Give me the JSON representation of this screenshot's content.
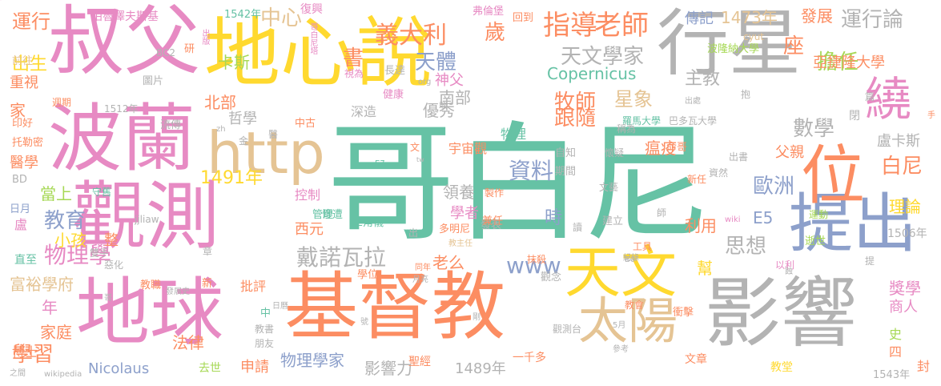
{
  "palette": {
    "teal": "#66c2a5",
    "orange": "#fc8d62",
    "blue": "#8da0cb",
    "pink": "#e78ac3",
    "green": "#a6d854",
    "yellow": "#ffd92f",
    "tan": "#e5c494",
    "gray": "#b3b3b3"
  },
  "words": [
    {
      "text": "哥白尼",
      "color": "teal"
    },
    {
      "text": "基督教",
      "color": "orange"
    },
    {
      "text": "叔父",
      "color": "pink"
    },
    {
      "text": "地心說",
      "color": "yellow"
    },
    {
      "text": "行星",
      "color": "gray"
    },
    {
      "text": "波蘭",
      "color": "pink"
    },
    {
      "text": "觀測",
      "color": "pink"
    },
    {
      "text": "地球",
      "color": "pink"
    },
    {
      "text": "影響",
      "color": "gray"
    },
    {
      "text": "天文",
      "color": "yellow"
    },
    {
      "text": "提出",
      "color": "blue"
    },
    {
      "text": "位",
      "color": "orange"
    },
    {
      "text": "繞",
      "color": "pink"
    },
    {
      "text": "http",
      "color": "tan"
    },
    {
      "text": "太陽",
      "color": "tan"
    },
    {
      "text": "指導",
      "color": "orange"
    },
    {
      "text": "老師",
      "color": "orange"
    },
    {
      "text": "義大利",
      "color": "orange"
    },
    {
      "text": "運行論",
      "color": "gray"
    },
    {
      "text": "天文學家",
      "color": "gray"
    },
    {
      "text": "天體",
      "color": "blue"
    },
    {
      "text": "擔任",
      "color": "green"
    },
    {
      "text": "數學",
      "color": "gray"
    },
    {
      "text": "歐洲",
      "color": "blue"
    },
    {
      "text": "白尼",
      "color": "orange"
    },
    {
      "text": "戴諾瓦拉",
      "color": "gray"
    },
    {
      "text": "思想",
      "color": "gray"
    },
    {
      "text": "資料",
      "color": "blue"
    },
    {
      "text": "時",
      "color": "blue"
    },
    {
      "text": "www",
      "color": "blue"
    },
    {
      "text": "物理學",
      "color": "pink"
    },
    {
      "text": "教育",
      "color": "blue"
    },
    {
      "text": "學習",
      "color": "orange"
    },
    {
      "text": "Nicolaus",
      "color": "blue"
    },
    {
      "text": "Copernicus",
      "color": "teal"
    },
    {
      "text": "波蘭",
      "color": "pink"
    },
    {
      "text": "運行",
      "color": "orange"
    },
    {
      "text": "柏魯澤夫斯基",
      "color": "pink"
    },
    {
      "text": "1542年",
      "color": "teal"
    },
    {
      "text": "中心",
      "color": "tan"
    },
    {
      "text": "復興",
      "color": "pink"
    },
    {
      "text": "書",
      "color": "orange"
    },
    {
      "text": "歲",
      "color": "orange"
    },
    {
      "text": "弗倫堡",
      "color": "pink"
    },
    {
      "text": "回到",
      "color": "orange"
    },
    {
      "text": "傳記",
      "color": "blue"
    },
    {
      "text": "1473年",
      "color": "tan"
    },
    {
      "text": "發展",
      "color": "orange"
    },
    {
      "text": "出生",
      "color": "yellow"
    },
    {
      "text": "重視",
      "color": "orange"
    },
    {
      "text": "前往",
      "color": "tan"
    },
    {
      "text": "出版",
      "color": "pink"
    },
    {
      "text": "研",
      "color": "orange"
    },
    {
      "text": "卡斯",
      "color": "green"
    },
    {
      "text": "哥白尼塔",
      "color": "pink"
    },
    {
      "text": "長達",
      "color": "gray"
    },
    {
      "text": "神父",
      "color": "pink"
    },
    {
      "text": "座",
      "color": "orange"
    },
    {
      "text": "亞捷隆大學",
      "color": "orange"
    },
    {
      "text": "波隆納大學",
      "color": "green"
    },
    {
      "text": "主教",
      "color": "gray"
    },
    {
      "text": "牧師",
      "color": "orange"
    },
    {
      "text": "星象",
      "color": "tan"
    },
    {
      "text": "南部",
      "color": "gray"
    },
    {
      "text": "優秀",
      "color": "gray"
    },
    {
      "text": "跟隨",
      "color": "orange"
    },
    {
      "text": "北部",
      "color": "orange"
    },
    {
      "text": "1512年",
      "color": "gray"
    },
    {
      "text": "家",
      "color": "orange"
    },
    {
      "text": "哲學",
      "color": "gray"
    },
    {
      "text": "深造",
      "color": "gray"
    },
    {
      "text": "物理",
      "color": "teal"
    },
    {
      "text": "羅馬大學",
      "color": "teal"
    },
    {
      "text": "巴多瓦大學",
      "color": "gray"
    },
    {
      "text": "醫學",
      "color": "orange"
    },
    {
      "text": "中古",
      "color": "orange"
    },
    {
      "text": "宇宙觀",
      "color": "orange"
    },
    {
      "text": "瘟疫",
      "color": "orange"
    },
    {
      "text": "父親",
      "color": "orange"
    },
    {
      "text": "盧卡斯",
      "color": "gray"
    },
    {
      "text": "1491年",
      "color": "yellow"
    },
    {
      "text": "領養",
      "color": "gray"
    },
    {
      "text": "當上",
      "color": "green"
    },
    {
      "text": "守舊",
      "color": "teal"
    },
    {
      "text": "控制",
      "color": "pink"
    },
    {
      "text": "學者",
      "color": "pink"
    },
    {
      "text": "利用",
      "color": "orange"
    },
    {
      "text": "E5",
      "color": "blue"
    },
    {
      "text": "理論",
      "color": "yellow"
    },
    {
      "text": "西元",
      "color": "orange"
    },
    {
      "text": "三角儀",
      "color": "teal"
    },
    {
      "text": "發表",
      "color": "gray"
    },
    {
      "text": "小孩",
      "color": "yellow"
    },
    {
      "text": "多明尼",
      "color": "orange"
    },
    {
      "text": "富裕學府",
      "color": "tan"
    },
    {
      "text": "老么",
      "color": "orange"
    },
    {
      "text": "抹殺",
      "color": "orange"
    },
    {
      "text": "幫",
      "color": "yellow"
    },
    {
      "text": "年",
      "color": "pink"
    },
    {
      "text": "批評",
      "color": "orange"
    },
    {
      "text": "家庭",
      "color": "orange"
    },
    {
      "text": "獎學",
      "color": "pink"
    },
    {
      "text": "商人",
      "color": "pink"
    },
    {
      "text": "法律",
      "color": "orange"
    },
    {
      "text": "申請",
      "color": "orange"
    },
    {
      "text": "物理學家",
      "color": "blue"
    },
    {
      "text": "影響力",
      "color": "gray"
    },
    {
      "text": "1489年",
      "color": "gray"
    },
    {
      "text": "聖經",
      "color": "orange"
    },
    {
      "text": "一千多",
      "color": "orange"
    },
    {
      "text": "1543年",
      "color": "gray"
    },
    {
      "text": "封",
      "color": "orange"
    },
    {
      "text": "去世",
      "color": "green"
    },
    {
      "text": "史",
      "color": "green"
    },
    {
      "text": "四",
      "color": "orange"
    },
    {
      "text": "教堂",
      "color": "yellow"
    },
    {
      "text": "文章",
      "color": "orange"
    },
    {
      "text": "wikipedia",
      "color": "gray"
    },
    {
      "text": "博士",
      "color": "orange"
    },
    {
      "text": "1506年",
      "color": "gray"
    },
    {
      "text": "自知",
      "color": "gray"
    },
    {
      "text": "期間",
      "color": "gray"
    },
    {
      "text": "E7",
      "color": "teal"
    },
    {
      "text": "健康",
      "color": "pink"
    },
    {
      "text": "org",
      "color": "gray"
    },
    {
      "text": "圖片",
      "color": "gray"
    },
    {
      "text": "BC2",
      "color": "gray"
    },
    {
      "text": "週期",
      "color": "orange"
    },
    {
      "text": "印好",
      "color": "orange"
    },
    {
      "text": "托勒密",
      "color": "orange"
    },
    {
      "text": "BD",
      "color": "gray"
    },
    {
      "text": "日月",
      "color": "blue"
    },
    {
      "text": "盧",
      "color": "pink"
    },
    {
      "text": "直至",
      "color": "teal"
    },
    {
      "text": "章",
      "color": "gray"
    },
    {
      "text": "管理",
      "color": "teal"
    },
    {
      "text": "兼任",
      "color": "orange"
    },
    {
      "text": "建立",
      "color": "gray"
    },
    {
      "text": "月亮",
      "color": "gray"
    },
    {
      "text": "紀錄",
      "color": "gray"
    },
    {
      "text": "工具",
      "color": "orange"
    },
    {
      "text": "教會",
      "color": "orange"
    },
    {
      "text": "衝擊",
      "color": "orange"
    },
    {
      "text": "運動",
      "color": "green"
    },
    {
      "text": "逝世",
      "color": "green"
    },
    {
      "text": "wiki",
      "color": "pink"
    },
    {
      "text": "命哥",
      "color": "orange"
    },
    {
      "text": "新任",
      "color": "orange"
    },
    {
      "text": "學位",
      "color": "orange"
    },
    {
      "text": "同年",
      "color": "orange"
    },
    {
      "text": "觀念",
      "color": "gray"
    },
    {
      "text": "出處",
      "color": "gray"
    },
    {
      "text": "抱",
      "color": "gray"
    },
    {
      "text": "篇",
      "color": "gray"
    },
    {
      "text": "閉",
      "color": "gray"
    },
    {
      "text": "手",
      "color": "orange"
    },
    {
      "text": "cyut",
      "color": "tan"
    },
    {
      "text": "稱為",
      "color": "gray"
    },
    {
      "text": "參考",
      "color": "gray"
    },
    {
      "text": "視為",
      "color": "pink"
    },
    {
      "text": "zh",
      "color": "gray"
    },
    {
      "text": "流傳",
      "color": "gray"
    },
    {
      "text": "教職",
      "color": "orange"
    },
    {
      "text": "新",
      "color": "orange"
    },
    {
      "text": "教書",
      "color": "gray"
    },
    {
      "text": "朋友",
      "color": "gray"
    },
    {
      "text": "日曆",
      "color": "gray"
    },
    {
      "text": "之間",
      "color": "gray"
    },
    {
      "text": "jjliaw",
      "color": "gray"
    },
    {
      "text": "雙手",
      "color": "gray"
    },
    {
      "text": "整",
      "color": "orange"
    },
    {
      "text": "惡化",
      "color": "gray"
    },
    {
      "text": "發展史",
      "color": "gray"
    },
    {
      "text": "教主任",
      "color": "tan"
    },
    {
      "text": "慘遭",
      "color": "teal"
    },
    {
      "text": "製作",
      "color": "orange"
    },
    {
      "text": "師",
      "color": "gray"
    },
    {
      "text": "讀",
      "color": "gray"
    },
    {
      "text": "懷疑",
      "color": "gray"
    },
    {
      "text": "觀測台",
      "color": "gray"
    },
    {
      "text": "金",
      "color": "gray"
    },
    {
      "text": "5月",
      "color": "gray"
    },
    {
      "text": "以利",
      "color": "pink"
    },
    {
      "text": "蝕",
      "color": "gray"
    },
    {
      "text": "出",
      "color": "gray"
    },
    {
      "text": "出書",
      "color": "gray"
    },
    {
      "text": "資然",
      "color": "gray"
    },
    {
      "text": "剛",
      "color": "gray"
    },
    {
      "text": "號",
      "color": "gray"
    },
    {
      "text": "哥",
      "color": "gray"
    },
    {
      "text": "醫",
      "color": "gray"
    },
    {
      "text": "提",
      "color": "gray"
    },
    {
      "text": "文",
      "color": "orange"
    },
    {
      "text": "B0",
      "color": "gray"
    },
    {
      "text": "文藝",
      "color": "gray"
    },
    {
      "text": "tw",
      "color": "gray"
    },
    {
      "text": "中",
      "color": "teal"
    },
    {
      "text": "敢",
      "color": "gray"
    }
  ]
}
